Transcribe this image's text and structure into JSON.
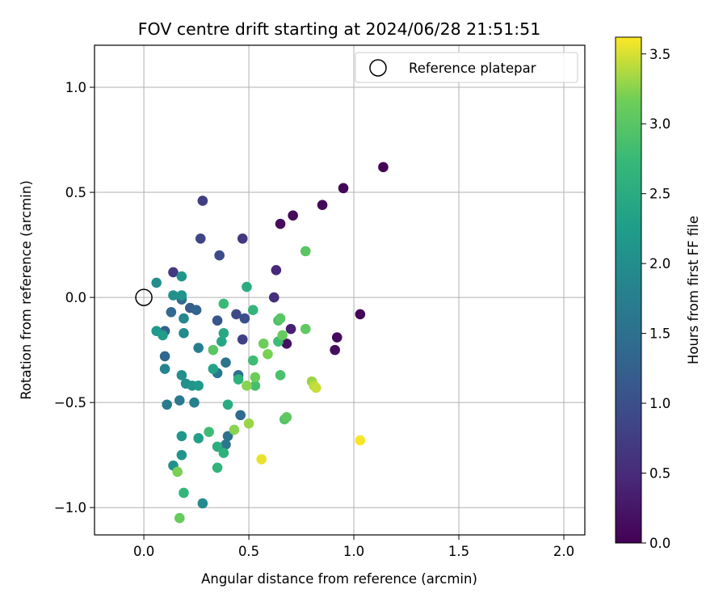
{
  "chart_data": {
    "type": "scatter",
    "title": "FOV centre drift starting at 2024/06/28 21:51:51",
    "xlabel": "Angular distance from reference (arcmin)",
    "ylabel": "Rotation from reference (arcmin)",
    "xlim": [
      -0.235,
      2.1
    ],
    "ylim": [
      -1.13,
      1.2
    ],
    "xticks": [
      0.0,
      0.5,
      1.0,
      1.5,
      2.0
    ],
    "xtick_labels": [
      "0.0",
      "0.5",
      "1.0",
      "1.5",
      "2.0"
    ],
    "yticks": [
      -1.0,
      -0.5,
      0.0,
      0.5,
      1.0
    ],
    "ytick_labels": [
      "−1.0",
      "−0.5",
      "0.0",
      "0.5",
      "1.0"
    ],
    "grid": true,
    "legend": {
      "placement": "top-right",
      "entries": [
        "Reference platepar"
      ]
    },
    "reference_point": {
      "x": 0.0,
      "y": 0.0
    },
    "colorbar": {
      "label": "Hours from first FF file",
      "colormap": "viridis",
      "range": [
        0.0,
        3.62
      ],
      "ticks": [
        0.0,
        0.5,
        1.0,
        1.5,
        2.0,
        2.5,
        3.0,
        3.5
      ],
      "tick_labels": [
        "0.0",
        "0.5",
        "1.0",
        "1.5",
        "2.0",
        "2.5",
        "3.0",
        "3.5"
      ]
    },
    "points": [
      {
        "x": 1.14,
        "y": 0.62,
        "c": 0.0
      },
      {
        "x": 0.95,
        "y": 0.52,
        "c": 0.05
      },
      {
        "x": 0.85,
        "y": 0.44,
        "c": 0.08
      },
      {
        "x": 0.71,
        "y": 0.39,
        "c": 0.1
      },
      {
        "x": 0.65,
        "y": 0.35,
        "c": 0.12
      },
      {
        "x": 1.03,
        "y": -0.08,
        "c": 0.05
      },
      {
        "x": 0.92,
        "y": -0.19,
        "c": 0.1
      },
      {
        "x": 0.91,
        "y": -0.25,
        "c": 0.15
      },
      {
        "x": 0.68,
        "y": -0.22,
        "c": 0.2
      },
      {
        "x": 0.7,
        "y": -0.15,
        "c": 0.35
      },
      {
        "x": 0.63,
        "y": 0.13,
        "c": 0.45
      },
      {
        "x": 0.62,
        "y": 0.0,
        "c": 0.55
      },
      {
        "x": 0.47,
        "y": 0.28,
        "c": 0.65
      },
      {
        "x": 0.28,
        "y": 0.46,
        "c": 0.75
      },
      {
        "x": 0.27,
        "y": 0.28,
        "c": 0.85
      },
      {
        "x": 0.36,
        "y": 0.2,
        "c": 0.95
      },
      {
        "x": 0.14,
        "y": 0.12,
        "c": 0.7
      },
      {
        "x": 0.47,
        "y": -0.2,
        "c": 0.8
      },
      {
        "x": 0.44,
        "y": -0.08,
        "c": 0.9
      },
      {
        "x": 0.48,
        "y": -0.1,
        "c": 1.0
      },
      {
        "x": 0.35,
        "y": -0.11,
        "c": 1.1
      },
      {
        "x": 0.22,
        "y": -0.05,
        "c": 1.2
      },
      {
        "x": 0.25,
        "y": -0.06,
        "c": 1.3
      },
      {
        "x": 0.13,
        "y": -0.07,
        "c": 1.4
      },
      {
        "x": 0.1,
        "y": -0.16,
        "c": 1.25
      },
      {
        "x": 0.1,
        "y": -0.28,
        "c": 1.35
      },
      {
        "x": 0.18,
        "y": -0.01,
        "c": 1.45
      },
      {
        "x": 0.39,
        "y": -0.31,
        "c": 1.55
      },
      {
        "x": 0.35,
        "y": -0.36,
        "c": 1.6
      },
      {
        "x": 0.45,
        "y": -0.37,
        "c": 1.5
      },
      {
        "x": 0.46,
        "y": -0.56,
        "c": 1.4
      },
      {
        "x": 0.4,
        "y": -0.66,
        "c": 1.5
      },
      {
        "x": 0.39,
        "y": -0.7,
        "c": 1.6
      },
      {
        "x": 0.17,
        "y": -0.49,
        "c": 1.65
      },
      {
        "x": 0.11,
        "y": -0.51,
        "c": 1.7
      },
      {
        "x": 0.26,
        "y": -0.24,
        "c": 1.75
      },
      {
        "x": 0.24,
        "y": -0.5,
        "c": 1.8
      },
      {
        "x": 0.1,
        "y": -0.34,
        "c": 1.85
      },
      {
        "x": 0.19,
        "y": -0.1,
        "c": 1.9
      },
      {
        "x": 0.19,
        "y": -0.17,
        "c": 1.95
      },
      {
        "x": 0.06,
        "y": 0.07,
        "c": 2.0
      },
      {
        "x": 0.14,
        "y": 0.01,
        "c": 2.05
      },
      {
        "x": 0.18,
        "y": 0.01,
        "c": 2.1
      },
      {
        "x": 0.18,
        "y": 0.1,
        "c": 2.15
      },
      {
        "x": 0.06,
        "y": -0.16,
        "c": 2.2
      },
      {
        "x": 0.09,
        "y": -0.18,
        "c": 2.25
      },
      {
        "x": 0.18,
        "y": -0.37,
        "c": 2.0
      },
      {
        "x": 0.2,
        "y": -0.41,
        "c": 2.05
      },
      {
        "x": 0.23,
        "y": -0.42,
        "c": 2.1
      },
      {
        "x": 0.26,
        "y": -0.42,
        "c": 2.2
      },
      {
        "x": 0.28,
        "y": -0.98,
        "c": 1.95
      },
      {
        "x": 0.14,
        "y": -0.8,
        "c": 2.05
      },
      {
        "x": 0.18,
        "y": -0.75,
        "c": 2.1
      },
      {
        "x": 0.18,
        "y": -0.66,
        "c": 2.15
      },
      {
        "x": 0.26,
        "y": -0.67,
        "c": 2.3
      },
      {
        "x": 0.33,
        "y": -0.34,
        "c": 2.35
      },
      {
        "x": 0.37,
        "y": -0.21,
        "c": 2.4
      },
      {
        "x": 0.38,
        "y": -0.17,
        "c": 2.45
      },
      {
        "x": 0.49,
        "y": 0.05,
        "c": 2.5
      },
      {
        "x": 0.4,
        "y": -0.51,
        "c": 2.5
      },
      {
        "x": 0.35,
        "y": -0.71,
        "c": 2.55
      },
      {
        "x": 0.38,
        "y": -0.74,
        "c": 2.6
      },
      {
        "x": 0.35,
        "y": -0.81,
        "c": 2.65
      },
      {
        "x": 0.19,
        "y": -0.93,
        "c": 2.7
      },
      {
        "x": 0.31,
        "y": -0.64,
        "c": 2.8
      },
      {
        "x": 0.45,
        "y": -0.39,
        "c": 2.6
      },
      {
        "x": 0.52,
        "y": -0.06,
        "c": 2.7
      },
      {
        "x": 0.52,
        "y": -0.3,
        "c": 2.8
      },
      {
        "x": 0.53,
        "y": -0.42,
        "c": 2.85
      },
      {
        "x": 0.38,
        "y": -0.03,
        "c": 2.75
      },
      {
        "x": 0.33,
        "y": -0.25,
        "c": 3.0
      },
      {
        "x": 0.64,
        "y": -0.11,
        "c": 2.9
      },
      {
        "x": 0.65,
        "y": -0.1,
        "c": 3.0
      },
      {
        "x": 0.64,
        "y": -0.21,
        "c": 2.8
      },
      {
        "x": 0.65,
        "y": -0.37,
        "c": 2.9
      },
      {
        "x": 0.67,
        "y": -0.58,
        "c": 2.95
      },
      {
        "x": 0.68,
        "y": -0.57,
        "c": 3.05
      },
      {
        "x": 0.77,
        "y": 0.22,
        "c": 3.0
      },
      {
        "x": 0.77,
        "y": -0.15,
        "c": 3.05
      },
      {
        "x": 0.66,
        "y": -0.18,
        "c": 3.1
      },
      {
        "x": 0.57,
        "y": -0.22,
        "c": 3.15
      },
      {
        "x": 0.59,
        "y": -0.27,
        "c": 3.2
      },
      {
        "x": 0.53,
        "y": -0.38,
        "c": 3.15
      },
      {
        "x": 0.49,
        "y": -0.42,
        "c": 3.25
      },
      {
        "x": 0.5,
        "y": -0.6,
        "c": 3.3
      },
      {
        "x": 0.43,
        "y": -0.63,
        "c": 3.25
      },
      {
        "x": 0.16,
        "y": -0.83,
        "c": 3.2
      },
      {
        "x": 0.17,
        "y": -1.05,
        "c": 3.1
      },
      {
        "x": 0.8,
        "y": -0.4,
        "c": 3.3
      },
      {
        "x": 0.81,
        "y": -0.42,
        "c": 3.4
      },
      {
        "x": 0.82,
        "y": -0.43,
        "c": 3.45
      },
      {
        "x": 0.56,
        "y": -0.77,
        "c": 3.55
      },
      {
        "x": 1.03,
        "y": -0.68,
        "c": 3.6
      }
    ]
  }
}
